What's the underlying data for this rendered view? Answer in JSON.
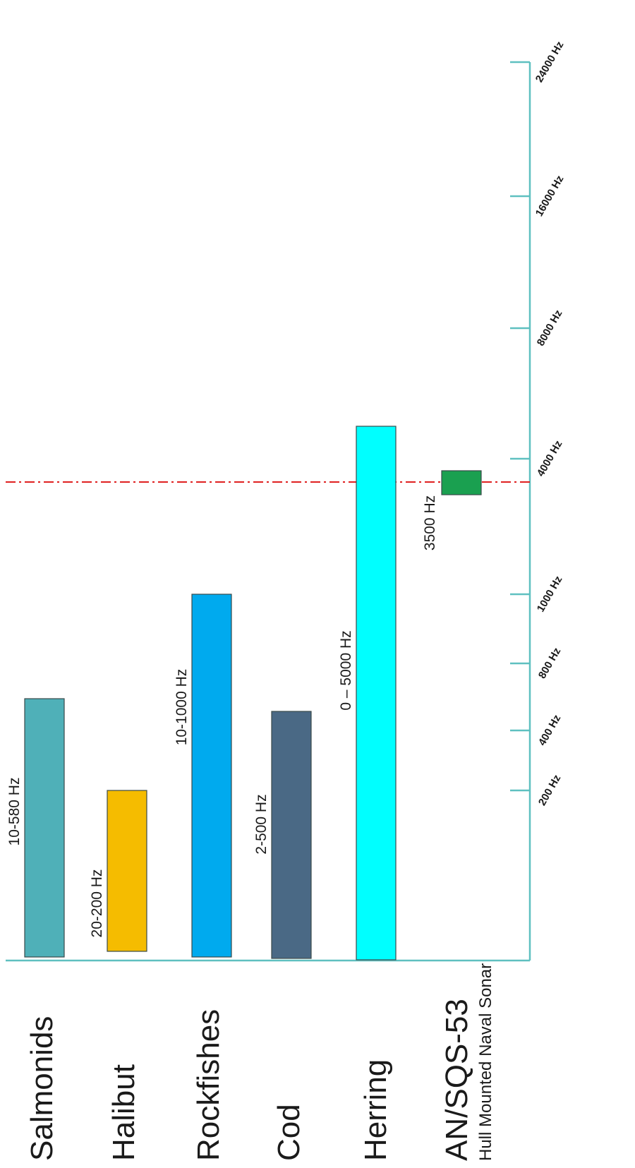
{
  "chart_data": {
    "type": "bar",
    "orientation": "horizontal-range",
    "title": "",
    "xlabel": "",
    "ylabel": "",
    "grid": false,
    "legend": "none",
    "axis_color": "#5fc0c0",
    "threshold_color": "#e02020",
    "threshold_value": "3500 Hz",
    "ticks": [
      "200 Hz",
      "400 Hz",
      "800 Hz",
      "1000 Hz",
      "4000 Hz",
      "8000 Hz",
      "16000 Hz",
      "24000 Hz"
    ],
    "bars": [
      {
        "category": "Salmonids",
        "range_label": "10-580 Hz",
        "low": "10 Hz",
        "high": "580 Hz",
        "color": "#4fb0b8"
      },
      {
        "category": "Halibut",
        "range_label": "20-200 Hz",
        "low": "20 Hz",
        "high": "200 Hz",
        "color": "#f5bc00"
      },
      {
        "category": "Rockfishes",
        "range_label": "10-1000 Hz",
        "low": "10 Hz",
        "high": "1000 Hz",
        "color": "#00aaee"
      },
      {
        "category": "Cod",
        "range_label": "2-500 Hz",
        "low": "2 Hz",
        "high": "500 Hz",
        "color": "#4a6985"
      },
      {
        "category": "Herring",
        "range_label": "0 – 5000 Hz",
        "low": "0 Hz",
        "high": "5000 Hz",
        "color": "#00ffff"
      },
      {
        "category": "AN/SQS-53",
        "subtitle": "Hull Mounted Naval Sonar",
        "range_label": "3500 Hz",
        "low": "3500 Hz",
        "high": "3500 Hz",
        "color": "#1aa050"
      }
    ]
  }
}
